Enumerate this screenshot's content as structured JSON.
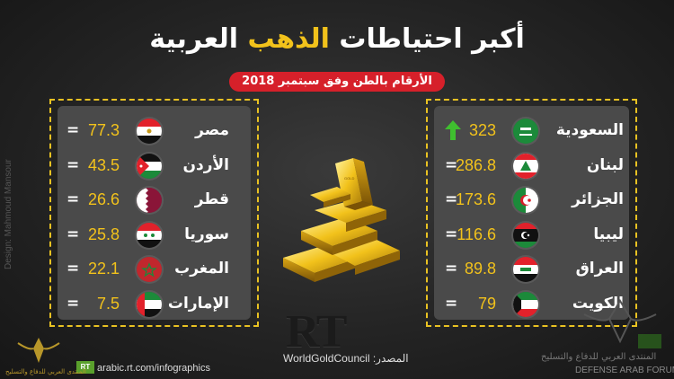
{
  "title": {
    "part1": "أكبر احتياطات",
    "highlight": "الذهب",
    "part2": "العربية"
  },
  "subtitle": "الأرقام بالطن وفق سبتمبر 2018",
  "right_list": [
    {
      "name": "السعودية",
      "value": "323",
      "flag": "sa",
      "arrow": true
    },
    {
      "name": "لبنان",
      "value": "286.8",
      "flag": "lb",
      "eq": "="
    },
    {
      "name": "الجزائر",
      "value": "173.6",
      "flag": "dz",
      "eq": "="
    },
    {
      "name": "ليبيا",
      "value": "116.6",
      "flag": "ly",
      "eq": "="
    },
    {
      "name": "العراق",
      "value": "89.8",
      "flag": "iq",
      "eq": "="
    },
    {
      "name": "الكويت",
      "value": "79",
      "flag": "kw",
      "eq": "="
    }
  ],
  "left_list": [
    {
      "name": "مصر",
      "value": "77.3",
      "flag": "eg",
      "eq": "="
    },
    {
      "name": "الأردن",
      "value": "43.5",
      "flag": "jo",
      "eq": "="
    },
    {
      "name": "قطر",
      "value": "26.6",
      "flag": "qa",
      "eq": "="
    },
    {
      "name": "سوريا",
      "value": "25.8",
      "flag": "sy",
      "eq": "="
    },
    {
      "name": "المغرب",
      "value": "22.1",
      "flag": "ma",
      "eq": "="
    },
    {
      "name": "الإمارات",
      "value": "7.5",
      "flag": "ae",
      "eq": "="
    }
  ],
  "gold_bar_text": "GOLD",
  "rt_logo": "RT",
  "source": "المصدر: WorldGoldCouncil",
  "url": "arabic.rt.com/infographics",
  "rt_badge": "RT",
  "designer_credit": "Design: Mahmoud Mansour",
  "forum_watermark_ar": "المنتدى العربي للدفاع والتسليح",
  "forum_watermark_en": "DEFENSE ARAB FORUM",
  "left_logo_text": "المنتدى العربي للدفاع والتسليح",
  "colors": {
    "gold": "#f2c21b",
    "red": "#d6202a",
    "frame": "#e9c222",
    "panel": "#4a4a4a",
    "arrow": "#3fbf2f"
  }
}
